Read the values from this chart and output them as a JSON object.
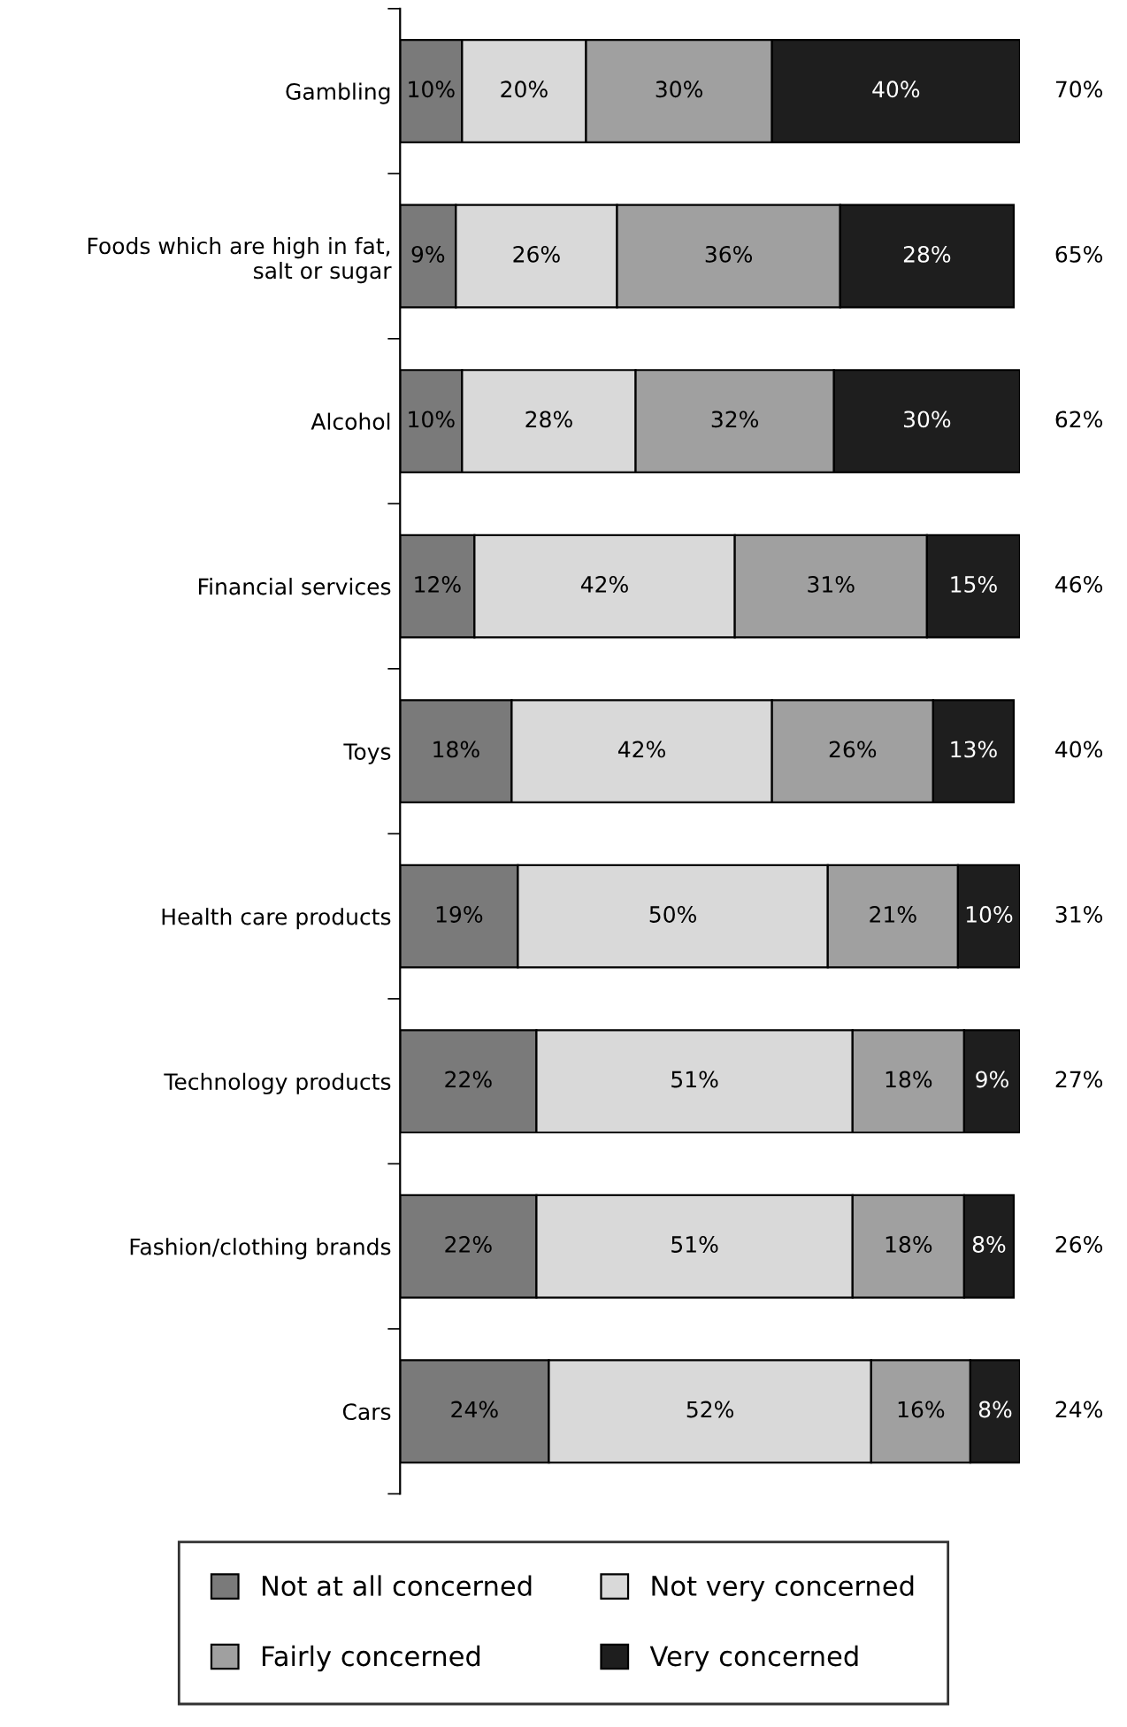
{
  "chart_data": {
    "type": "bar",
    "orientation": "horizontal",
    "stacked": true,
    "legend": "bottom",
    "grid": false,
    "categories": [
      "Gambling",
      "Foods which are high in fat,\nsalt or sugar",
      "Alcohol",
      "Financial services",
      "Toys",
      "Health care products",
      "Technology products",
      "Fashion/clothing brands",
      "Cars"
    ],
    "series": [
      {
        "name": "Not at all concerned",
        "color": "#7a7a7a",
        "values": [
          10,
          9,
          10,
          12,
          18,
          19,
          22,
          22,
          24
        ],
        "value_labels": [
          "10%",
          "9%",
          "10%",
          "12%",
          "18%",
          "19%",
          "22%",
          "22%",
          "24%"
        ]
      },
      {
        "name": "Not very concerned",
        "color": "#d9d9d9",
        "values": [
          20,
          26,
          28,
          42,
          42,
          50,
          51,
          51,
          52
        ],
        "value_labels": [
          "20%",
          "26%",
          "28%",
          "42%",
          "42%",
          "50%",
          "51%",
          "51%",
          "52%"
        ]
      },
      {
        "name": "Fairly concerned",
        "color": "#a0a0a0",
        "values": [
          30,
          36,
          32,
          31,
          26,
          21,
          18,
          18,
          16
        ],
        "value_labels": [
          "30%",
          "36%",
          "32%",
          "31%",
          "26%",
          "21%",
          "18%",
          "18%",
          "16%"
        ]
      },
      {
        "name": "Very concerned",
        "color": "#1e1e1e",
        "values": [
          40,
          28,
          30,
          15,
          13,
          10,
          9,
          8,
          8
        ],
        "value_labels": [
          "40%",
          "28%",
          "30%",
          "15%",
          "13%",
          "10%",
          "9%",
          "8%",
          "8%"
        ]
      }
    ],
    "annotations": [
      "70%",
      "65%",
      "62%",
      "46%",
      "40%",
      "31%",
      "27%",
      "26%",
      "24%"
    ]
  }
}
